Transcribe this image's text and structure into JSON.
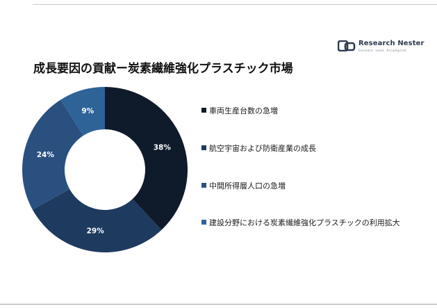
{
  "logo": {
    "name": "Research Nester",
    "tagline": "Connect. Lead. Accomplish"
  },
  "title": "成長要因の貢献ー炭素繊維強化プラスチック市場",
  "colors": [
    "#0f1b2b",
    "#1e3a5f",
    "#2a5080",
    "#2e6398"
  ],
  "chart_data": {
    "type": "pie",
    "donut": true,
    "start_angle_deg": 0,
    "direction": "clockwise",
    "legend_position": "right",
    "slices": [
      {
        "label": "車両生産台数の急増",
        "value": 38,
        "display": "38%"
      },
      {
        "label": "航空宇宙および防衛産業の成長",
        "value": 29,
        "display": "29%"
      },
      {
        "label": "中間所得層人口の急増",
        "value": 24,
        "display": "24%"
      },
      {
        "label": "建設分野における炭素繊維強化プラスチックの利用拡大",
        "value": 9,
        "display": "9%"
      }
    ]
  }
}
